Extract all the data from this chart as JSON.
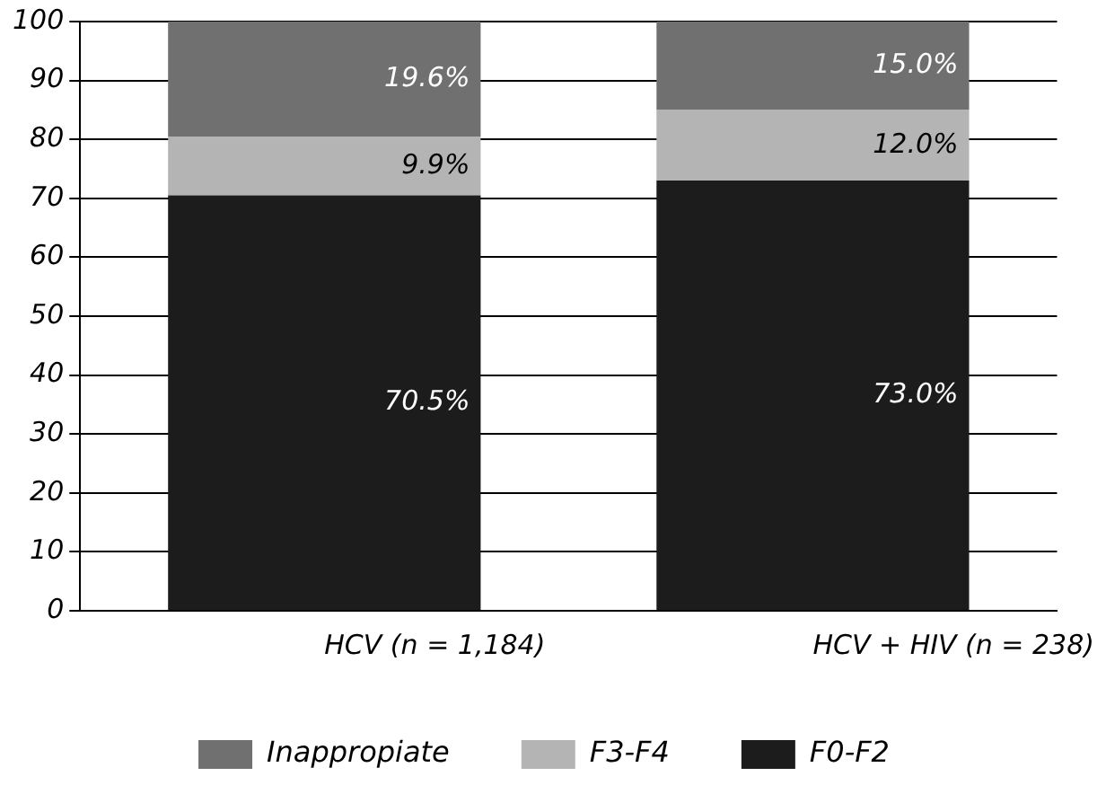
{
  "chart_data": {
    "type": "bar",
    "stacked": true,
    "categories": [
      "HCV (n = 1,184)",
      "HCV + HIV (n = 238)"
    ],
    "series": [
      {
        "name": "F0-F2",
        "color": "#1c1c1c",
        "values": [
          70.5,
          73.0
        ],
        "value_labels": [
          "70.5%",
          "73.0%"
        ]
      },
      {
        "name": "F3-F4",
        "color": "#b4b4b4",
        "values": [
          9.9,
          12.0
        ],
        "value_labels": [
          "9.9%",
          "12.0%"
        ]
      },
      {
        "name": "Inappropiate",
        "color": "#707070",
        "values": [
          19.6,
          15.0
        ],
        "value_labels": [
          "19.6%",
          "15.0%"
        ]
      }
    ],
    "ylim": [
      0,
      100
    ],
    "yticks": [
      0,
      10,
      20,
      30,
      40,
      50,
      60,
      70,
      80,
      90,
      100
    ],
    "grid": "y",
    "legend": "bottom"
  }
}
